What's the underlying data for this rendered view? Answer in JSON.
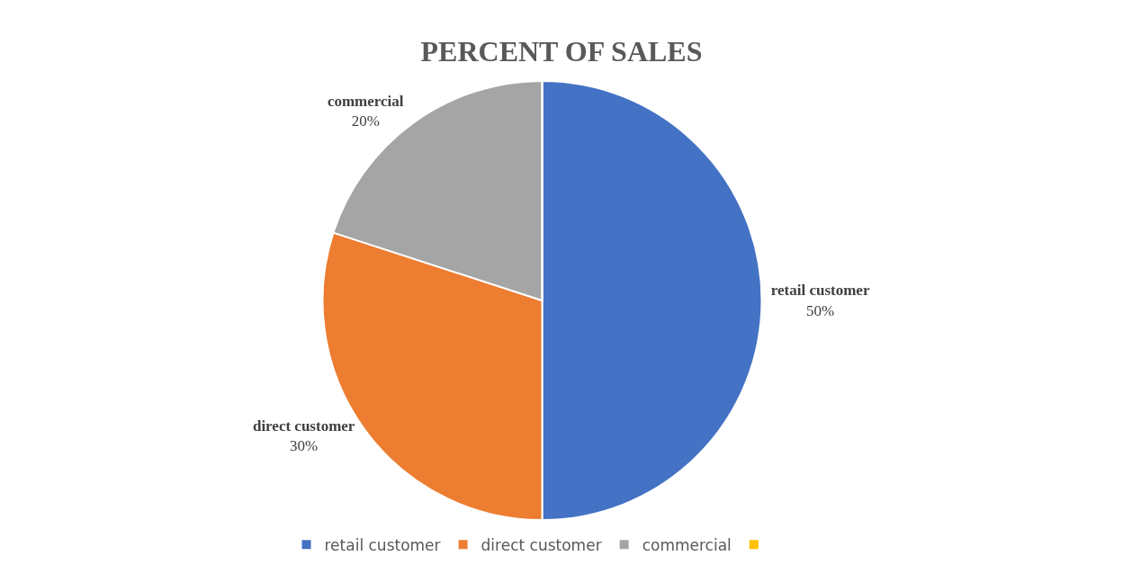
{
  "chart_data": {
    "type": "pie",
    "title": "PERCENT OF SALES",
    "categories": [
      "retail customer",
      "direct customer",
      "commercial",
      null
    ],
    "values": [
      50,
      30,
      20,
      0
    ],
    "colors": [
      "#4472c4",
      "#ed7d31",
      "#a5a5a5",
      "#ffc000"
    ],
    "value_labels": [
      "50%",
      "30%",
      "20%",
      null
    ],
    "legend": "bottom"
  }
}
